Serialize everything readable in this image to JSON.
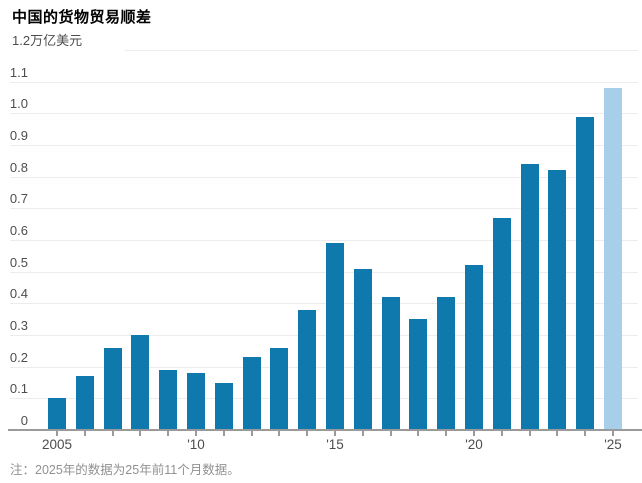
{
  "title": "中国的货物贸易顺差",
  "unit_label": "1.2万亿美元",
  "footnote": "注：2025年的数据为25年前11个月数据。",
  "colors": {
    "bar": "#0f78ad",
    "bar_highlight": "#a7cfea",
    "gridline": "#ececec",
    "axis": "#9a9a9a",
    "tick_label": "#4d4d4d",
    "title": "#000000",
    "footnote": "#919191",
    "background": "#ffffff"
  },
  "chart_data": {
    "type": "bar",
    "title": "中国的货物贸易顺差",
    "ylabel": "万亿美元",
    "xlabel": "",
    "categories": [
      2005,
      2006,
      2007,
      2008,
      2009,
      2010,
      2011,
      2012,
      2013,
      2014,
      2015,
      2016,
      2017,
      2018,
      2019,
      2020,
      2021,
      2022,
      2023,
      2024,
      2025
    ],
    "values": [
      0.1,
      0.17,
      0.26,
      0.3,
      0.19,
      0.18,
      0.15,
      0.23,
      0.26,
      0.38,
      0.59,
      0.51,
      0.42,
      0.35,
      0.42,
      0.52,
      0.67,
      0.84,
      0.82,
      0.99,
      1.08
    ],
    "highlight_last": true,
    "highlight_reason": "2025年的数据为25年前11个月数据",
    "ylim": [
      0,
      1.2
    ],
    "ytick_step": 0.1,
    "ytick_labels": [
      "0",
      "0.1",
      "0.2",
      "0.3",
      "0.4",
      "0.5",
      "0.6",
      "0.7",
      "0.8",
      "0.9",
      "1.0",
      "1.1"
    ],
    "top_tick_label": "1.2万亿美元",
    "xticks": [
      {
        "year": 2005,
        "label": "2005"
      },
      {
        "year": 2010,
        "label": "'10"
      },
      {
        "year": 2015,
        "label": "'15"
      },
      {
        "year": 2020,
        "label": "'20"
      },
      {
        "year": 2025,
        "label": "'25"
      }
    ],
    "grid": true,
    "legend": "none"
  }
}
